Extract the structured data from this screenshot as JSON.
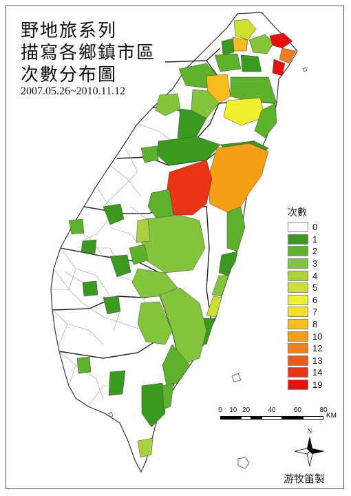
{
  "title": {
    "line1": "野地旅系列",
    "line2": "描寫各鄉鎮市區",
    "line3": "次數分布圖",
    "date_range": "2007.05.26~2010.11.12"
  },
  "legend": {
    "title": "次數",
    "items": [
      {
        "label": "0",
        "color": "#ffffff"
      },
      {
        "label": "1",
        "color": "#3a9a1e"
      },
      {
        "label": "2",
        "color": "#5cb22a"
      },
      {
        "label": "3",
        "color": "#82c43a"
      },
      {
        "label": "4",
        "color": "#a8d23c"
      },
      {
        "label": "5",
        "color": "#cde02e"
      },
      {
        "label": "6",
        "color": "#eef030"
      },
      {
        "label": "7",
        "color": "#f6de28"
      },
      {
        "label": "8",
        "color": "#f7bd1c"
      },
      {
        "label": "10",
        "color": "#f5a014"
      },
      {
        "label": "12",
        "color": "#f27d1a"
      },
      {
        "label": "13",
        "color": "#ef5a18"
      },
      {
        "label": "14",
        "color": "#ea3414"
      },
      {
        "label": "19",
        "color": "#e8100e"
      }
    ]
  },
  "scale_bar": {
    "labels": [
      "0",
      "10",
      "20",
      "40",
      "60",
      "80"
    ],
    "unit": "KM"
  },
  "north_arrow": {
    "label": "N"
  },
  "credit": "游牧笛製"
}
